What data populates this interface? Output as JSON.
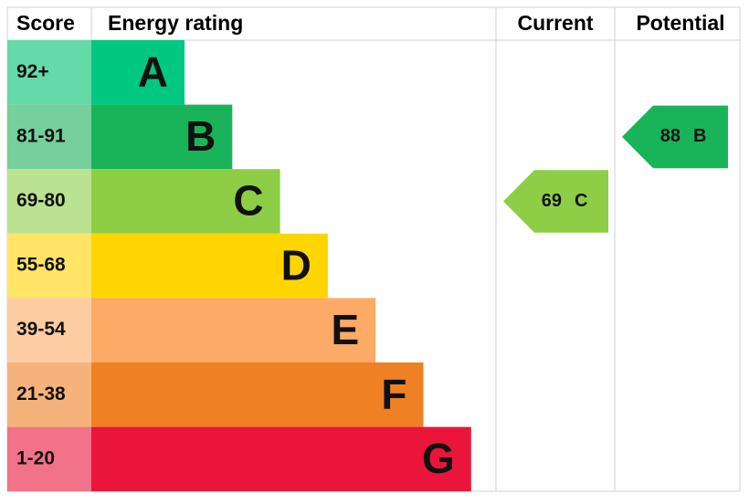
{
  "header": {
    "score": "Score",
    "energy_rating": "Energy rating",
    "current": "Current",
    "potential": "Potential"
  },
  "bands": [
    {
      "score": "92+",
      "letter": "A",
      "color": "#00c781",
      "score_color": "#66d9a9"
    },
    {
      "score": "81-91",
      "letter": "B",
      "color": "#19b459",
      "score_color": "#75d09b"
    },
    {
      "score": "69-80",
      "letter": "C",
      "color": "#8dce46",
      "score_color": "#bbe290"
    },
    {
      "score": "55-68",
      "letter": "D",
      "color": "#ffd500",
      "score_color": "#ffe466"
    },
    {
      "score": "39-54",
      "letter": "E",
      "color": "#fcaa65",
      "score_color": "#fdcca3"
    },
    {
      "score": "21-38",
      "letter": "F",
      "color": "#ef8023",
      "score_color": "#f5b37b"
    },
    {
      "score": "1-20",
      "letter": "G",
      "color": "#e9153b",
      "score_color": "#f27389"
    }
  ],
  "current": {
    "value": 69,
    "letter": "C"
  },
  "potential": {
    "value": 88,
    "letter": "B"
  }
}
